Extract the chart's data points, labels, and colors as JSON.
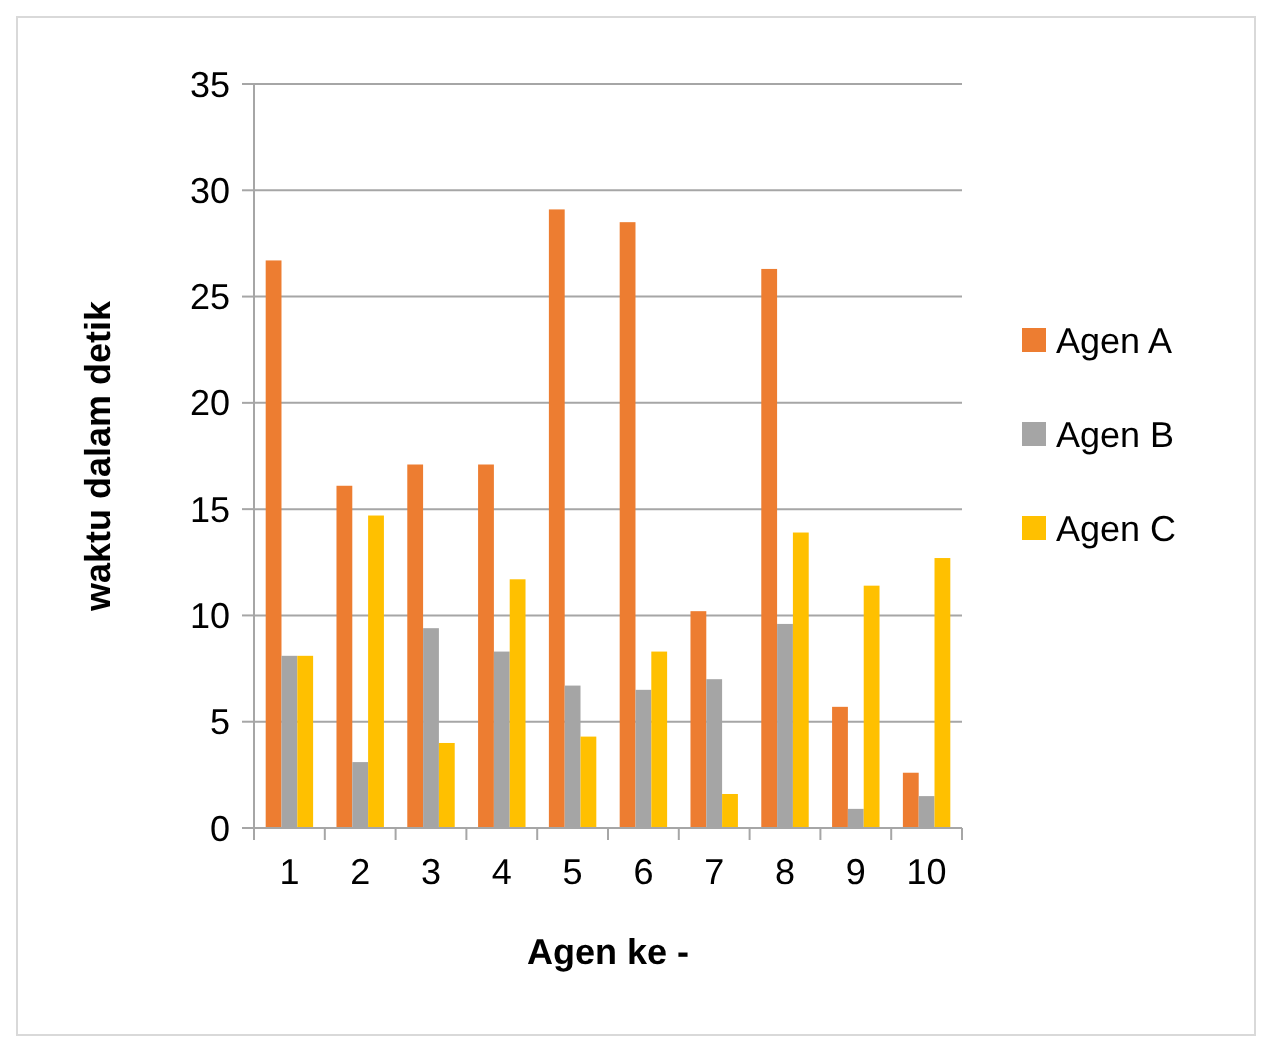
{
  "chart_data": {
    "type": "bar",
    "xlabel": "Agen ke -",
    "ylabel": "waktu dalam detik",
    "categories": [
      "1",
      "2",
      "3",
      "4",
      "5",
      "6",
      "7",
      "8",
      "9",
      "10"
    ],
    "series": [
      {
        "name": "Agen A",
        "color": "#ed7d31",
        "values": [
          26.7,
          16.1,
          17.1,
          17.1,
          29.1,
          28.5,
          10.2,
          26.3,
          5.7,
          2.6
        ]
      },
      {
        "name": "Agen B",
        "color": "#a5a5a5",
        "values": [
          8.1,
          3.1,
          9.4,
          8.3,
          6.7,
          6.5,
          7.0,
          9.6,
          0.9,
          1.5
        ]
      },
      {
        "name": "Agen C",
        "color": "#ffc000",
        "values": [
          8.1,
          14.7,
          4.0,
          11.7,
          4.3,
          8.3,
          1.6,
          13.9,
          11.4,
          12.7
        ]
      }
    ],
    "ylim": [
      0,
      35
    ],
    "yticks": [
      0,
      5,
      10,
      15,
      20,
      25,
      30,
      35
    ],
    "grid": "y",
    "legend": "right"
  }
}
